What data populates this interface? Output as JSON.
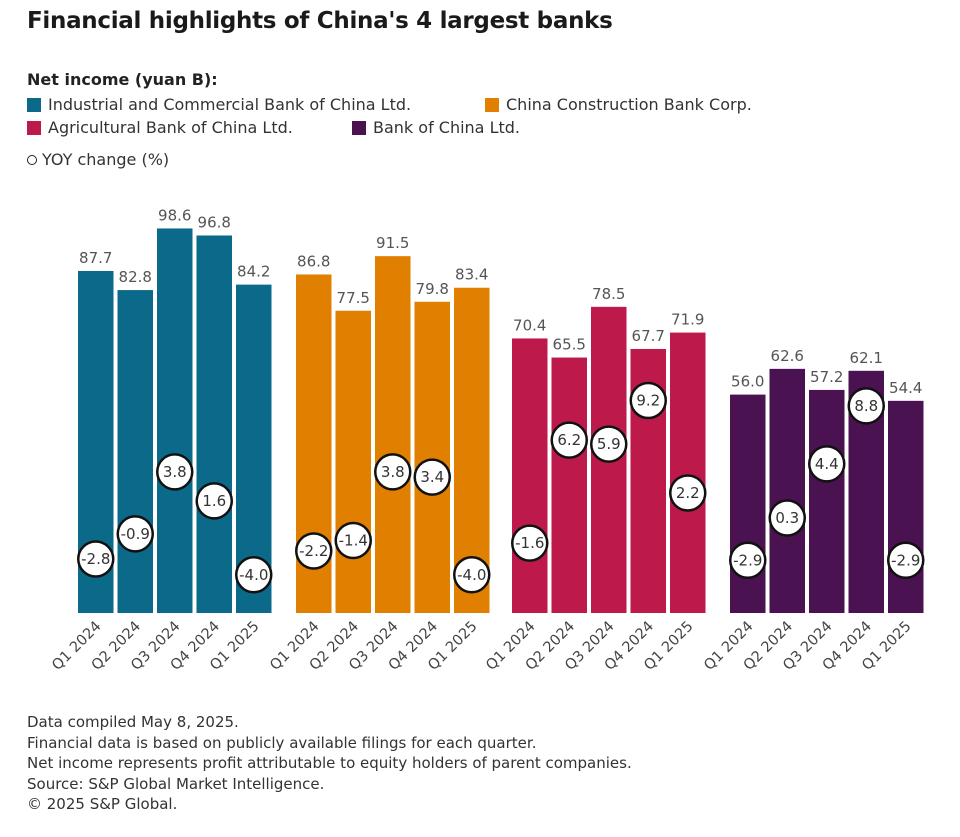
{
  "chart_data": {
    "type": "bar",
    "title": "Financial highlights of China's 4 largest banks",
    "legend_title": "Net income (yuan B):",
    "yoy_label": "YOY change (%)",
    "categories": [
      "Q1 2024",
      "Q2 2024",
      "Q3 2024",
      "Q4 2024",
      "Q1 2025"
    ],
    "series": [
      {
        "name": "Industrial and Commercial Bank of China Ltd.",
        "color": "#0b6a8a",
        "values": [
          87.7,
          82.8,
          98.6,
          96.8,
          84.2
        ],
        "yoy": [
          -2.8,
          -0.9,
          3.8,
          1.6,
          -4.0
        ],
        "value_labels": [
          "87.7",
          "82.8",
          "98.6",
          "96.8",
          "84.2"
        ],
        "yoy_labels": [
          "-2.8",
          "-0.9",
          "3.8",
          "1.6",
          "-4.0"
        ]
      },
      {
        "name": "China Construction Bank Corp.",
        "color": "#e07f00",
        "values": [
          86.8,
          77.5,
          91.5,
          79.8,
          83.4
        ],
        "yoy": [
          -2.2,
          -1.4,
          3.8,
          3.4,
          -4.0
        ],
        "value_labels": [
          "86.8",
          "77.5",
          "91.5",
          "79.8",
          "83.4"
        ],
        "yoy_labels": [
          "-2.2",
          "-1.4",
          "3.8",
          "3.4",
          "-4.0"
        ]
      },
      {
        "name": "Agricultural Bank of China Ltd.",
        "color": "#bd1a4b",
        "values": [
          70.4,
          65.5,
          78.5,
          67.7,
          71.9
        ],
        "yoy": [
          -1.6,
          6.2,
          5.9,
          9.2,
          2.2
        ],
        "value_labels": [
          "70.4",
          "65.5",
          "78.5",
          "67.7",
          "71.9"
        ],
        "yoy_labels": [
          "-1.6",
          "6.2",
          "5.9",
          "9.2",
          "2.2"
        ]
      },
      {
        "name": "Bank of China Ltd.",
        "color": "#4a1250",
        "values": [
          56.0,
          62.6,
          57.2,
          62.1,
          54.4
        ],
        "yoy": [
          -2.9,
          0.3,
          4.4,
          8.8,
          -2.9
        ],
        "value_labels": [
          "56.0",
          "62.6",
          "57.2",
          "62.1",
          "54.4"
        ],
        "yoy_labels": [
          "-2.9",
          "0.3",
          "4.4",
          "8.8",
          "-2.9"
        ]
      }
    ],
    "ylim": [
      0,
      100
    ],
    "grid": false,
    "legend_placement": "top-left"
  },
  "footer": [
    "Data compiled May 8, 2025.",
    "Financial data is based on publicly available filings for each quarter.",
    "Net income represents profit attributable to equity holders of parent companies.",
    "Source: S&P Global Market Intelligence.",
    "© 2025 S&P Global."
  ]
}
